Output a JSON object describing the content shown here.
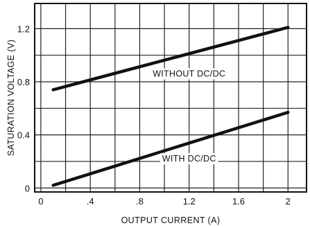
{
  "chart_data": {
    "type": "line",
    "title": "",
    "xlabel": "OUTPUT CURRENT (A)",
    "ylabel": "SATURATION VOLTAGE (V)",
    "xlim": [
      -0.05,
      2.15
    ],
    "ylim": [
      -0.03,
      1.39
    ],
    "grid": true,
    "x_ticks": [
      {
        "value": 0,
        "label": "0"
      },
      {
        "value": 0.4,
        "label": ".4"
      },
      {
        "value": 0.8,
        "label": ".8"
      },
      {
        "value": 1.2,
        "label": "1.2"
      },
      {
        "value": 1.6,
        "label": "1.6"
      },
      {
        "value": 2.0,
        "label": "2"
      }
    ],
    "y_ticks": [
      {
        "value": 0,
        "label": "0"
      },
      {
        "value": 0.4,
        "label": "0.4"
      },
      {
        "value": 0.8,
        "label": "0.8"
      },
      {
        "value": 1.2,
        "label": "1.2"
      }
    ],
    "series": [
      {
        "name": "WITHOUT DC/DC",
        "x": [
          0.1,
          2.0
        ],
        "y": [
          0.74,
          1.21
        ],
        "label_x": 1.2,
        "label_y": 0.86
      },
      {
        "name": "WITH DC/DC",
        "x": [
          0.1,
          2.0
        ],
        "y": [
          0.02,
          0.57
        ],
        "label_x": 1.2,
        "label_y": 0.22
      }
    ],
    "colors": {
      "line": "#111111",
      "grid": "#222222",
      "background": "#ffffff"
    }
  }
}
